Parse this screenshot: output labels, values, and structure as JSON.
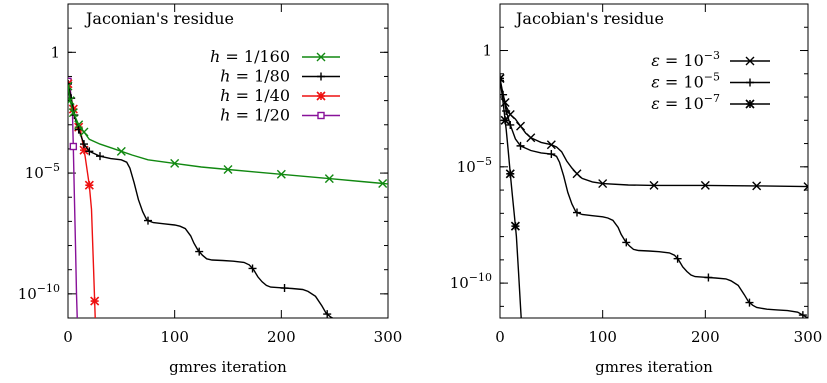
{
  "chart_data": [
    {
      "type": "line",
      "title": "Jaconian's residue",
      "xlabel": "gmres iteration",
      "ylabel": "",
      "xlim": [
        0,
        300
      ],
      "ylim_exponent": [
        -11,
        2
      ],
      "yscale": "log",
      "x_ticks": [
        "0",
        "100",
        "200",
        "300"
      ],
      "y_ticks": [
        {
          "label": "1",
          "exp": 0,
          "mantissa": "",
          "power": ""
        },
        {
          "label": "10^-5",
          "exp": -5,
          "mantissa": "10",
          "power": "−5"
        },
        {
          "label": "10^-10",
          "exp": -10,
          "mantissa": "10",
          "power": "−10"
        }
      ],
      "legend_position": "top-right",
      "series": [
        {
          "name": "h = 1/160",
          "legend": {
            "lhs": "h",
            "rhs": " = 1/160"
          },
          "color": "#118811",
          "marker": "x",
          "x": [
            0,
            2,
            5,
            10,
            15,
            20,
            30,
            40,
            50,
            60,
            75,
            100,
            125,
            150,
            175,
            200,
            225,
            250,
            275,
            300
          ],
          "y": [
            -1.4,
            -2.0,
            -2.5,
            -3.0,
            -3.3,
            -3.6,
            -3.8,
            -3.95,
            -4.1,
            -4.25,
            -4.45,
            -4.6,
            -4.75,
            -4.85,
            -4.95,
            -5.05,
            -5.15,
            -5.25,
            -5.35,
            -5.45
          ],
          "marker_x": [
            0,
            2,
            5,
            10,
            15,
            50,
            100,
            150,
            200,
            245,
            295
          ]
        },
        {
          "name": "h = 1/80",
          "legend": {
            "lhs": "h",
            "rhs": " = 1/80"
          },
          "color": "#000000",
          "marker": "+",
          "x": [
            0,
            3,
            6,
            10,
            15,
            20,
            30,
            40,
            50,
            55,
            58,
            62,
            66,
            70,
            74,
            80,
            90,
            100,
            105,
            110,
            115,
            118,
            122,
            126,
            130,
            135,
            145,
            155,
            165,
            170,
            174,
            178,
            182,
            186,
            190,
            200,
            210,
            220,
            225,
            232,
            238,
            242,
            246,
            250,
            260,
            270,
            280,
            290,
            300
          ],
          "y": [
            -1.3,
            -1.9,
            -2.6,
            -3.2,
            -3.8,
            -4.1,
            -4.3,
            -4.4,
            -4.45,
            -4.55,
            -4.8,
            -5.4,
            -6.1,
            -6.6,
            -6.95,
            -7.05,
            -7.1,
            -7.15,
            -7.2,
            -7.3,
            -7.6,
            -7.9,
            -8.2,
            -8.4,
            -8.55,
            -8.6,
            -8.62,
            -8.65,
            -8.7,
            -8.8,
            -9.0,
            -9.3,
            -9.5,
            -9.65,
            -9.72,
            -9.75,
            -9.78,
            -9.82,
            -9.9,
            -10.1,
            -10.5,
            -10.8,
            -10.95,
            -11.05,
            -11.12,
            -11.15,
            -11.18,
            -11.25,
            -11.5
          ],
          "marker_x": [
            0,
            3,
            6,
            10,
            15,
            20,
            30,
            75,
            123,
            173,
            203,
            243,
            295
          ]
        },
        {
          "name": "h = 1/40",
          "legend": {
            "lhs": "h",
            "rhs": " = 1/40"
          },
          "color": "#ee1111",
          "marker": "*",
          "x": [
            0,
            2,
            4,
            6,
            8,
            10,
            12,
            14,
            16,
            18,
            20,
            22,
            24,
            26
          ],
          "y": [
            -1.3,
            -1.7,
            -2.1,
            -2.6,
            -2.9,
            -3.1,
            -3.3,
            -3.8,
            -4.3,
            -4.9,
            -5.5,
            -6.5,
            -9.0,
            -11.6
          ],
          "marker_x": [
            0,
            5,
            10,
            15,
            20,
            25
          ]
        },
        {
          "name": "h = 1/20",
          "legend": {
            "lhs": "h",
            "rhs": " = 1/20"
          },
          "color": "#881199",
          "marker": "square",
          "x": [
            0,
            2,
            4,
            5,
            6,
            7,
            8,
            9,
            10
          ],
          "y": [
            -1.2,
            -1.5,
            -2.2,
            -3.9,
            -6.0,
            -8.0,
            -10.0,
            -11.5,
            -12.5
          ],
          "marker_x": [
            0,
            5
          ]
        }
      ]
    },
    {
      "type": "line",
      "title": "Jacobian's residue",
      "xlabel": "gmres iteration",
      "ylabel": "",
      "xlim": [
        0,
        300
      ],
      "ylim_exponent": [
        -11.5,
        2
      ],
      "yscale": "log",
      "x_ticks": [
        "0",
        "100",
        "200",
        "300"
      ],
      "y_ticks": [
        {
          "label": "1",
          "exp": 0,
          "mantissa": "",
          "power": ""
        },
        {
          "label": "10^-5",
          "exp": -5,
          "mantissa": "10",
          "power": "−5"
        },
        {
          "label": "10^-10",
          "exp": -10,
          "mantissa": "10",
          "power": "−10"
        }
      ],
      "legend_position": "top-right",
      "series": [
        {
          "name": "ε = 10^-3",
          "legend": {
            "lhs": "ε",
            "rhs": " = 10",
            "sup": "−3"
          },
          "color": "#000000",
          "marker": "x",
          "x": [
            0,
            3,
            6,
            10,
            15,
            20,
            25,
            30,
            40,
            50,
            55,
            60,
            65,
            70,
            75,
            80,
            90,
            100,
            125,
            150,
            175,
            200,
            250,
            300
          ],
          "y": [
            -1.2,
            -1.9,
            -2.4,
            -2.75,
            -2.95,
            -3.25,
            -3.55,
            -3.75,
            -3.95,
            -4.05,
            -4.15,
            -4.35,
            -4.75,
            -5.05,
            -5.3,
            -5.5,
            -5.65,
            -5.72,
            -5.78,
            -5.8,
            -5.8,
            -5.8,
            -5.82,
            -5.85
          ],
          "marker_x": [
            0,
            5,
            10,
            20,
            30,
            50,
            75,
            100,
            150,
            200,
            250,
            300
          ]
        },
        {
          "name": "ε = 10^-5",
          "legend": {
            "lhs": "ε",
            "rhs": " = 10",
            "sup": "−5"
          },
          "color": "#000000",
          "marker": "+",
          "x": [
            0,
            3,
            6,
            10,
            15,
            20,
            30,
            40,
            50,
            55,
            58,
            62,
            66,
            70,
            74,
            80,
            90,
            100,
            105,
            110,
            115,
            118,
            122,
            126,
            130,
            135,
            145,
            155,
            165,
            170,
            174,
            178,
            182,
            186,
            190,
            200,
            210,
            220,
            225,
            232,
            238,
            242,
            246,
            250,
            260,
            270,
            280,
            290,
            300
          ],
          "y": [
            -1.3,
            -1.9,
            -2.6,
            -3.2,
            -3.8,
            -4.1,
            -4.3,
            -4.4,
            -4.45,
            -4.55,
            -4.8,
            -5.4,
            -6.1,
            -6.6,
            -6.95,
            -7.05,
            -7.1,
            -7.15,
            -7.2,
            -7.3,
            -7.6,
            -7.9,
            -8.2,
            -8.4,
            -8.55,
            -8.6,
            -8.62,
            -8.65,
            -8.7,
            -8.8,
            -9.0,
            -9.3,
            -9.5,
            -9.65,
            -9.72,
            -9.75,
            -9.78,
            -9.82,
            -9.9,
            -10.1,
            -10.5,
            -10.8,
            -10.95,
            -11.05,
            -11.12,
            -11.15,
            -11.18,
            -11.25,
            -11.5
          ],
          "marker_x": [
            0,
            3,
            6,
            10,
            20,
            50,
            75,
            123,
            173,
            203,
            243,
            295
          ]
        },
        {
          "name": "ε = 10^-7",
          "legend": {
            "lhs": "ε",
            "rhs": " = 10",
            "sup": "−7"
          },
          "color": "#000000",
          "marker": "*",
          "x": [
            0,
            2,
            4,
            6,
            8,
            10,
            12,
            14,
            16,
            18,
            20,
            22
          ],
          "y": [
            -1.2,
            -1.9,
            -2.6,
            -3.4,
            -4.3,
            -5.3,
            -6.2,
            -7.1,
            -8.0,
            -9.5,
            -11.0,
            -12.5
          ],
          "marker_x": [
            0,
            5,
            10,
            15
          ]
        }
      ]
    }
  ]
}
